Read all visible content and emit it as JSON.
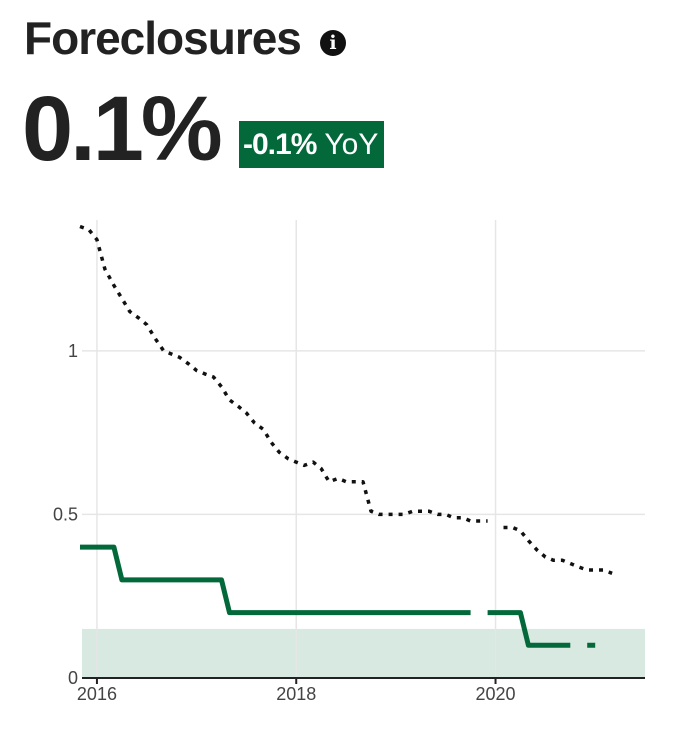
{
  "header": {
    "title": "Foreclosures",
    "info_icon": "info-icon",
    "value": "0.1%",
    "yoy_change": "-0.1%",
    "yoy_label": "YoY",
    "badge_color": "#03693b"
  },
  "chart_data": {
    "type": "line",
    "title": "",
    "xlabel": "",
    "ylabel": "",
    "xlim": [
      2015.85,
      2021.5
    ],
    "ylim": [
      0,
      1.4
    ],
    "x_ticks": [
      {
        "value": 2016,
        "label": "2016"
      },
      {
        "value": 2018,
        "label": "2018"
      },
      {
        "value": 2020,
        "label": "2020"
      }
    ],
    "y_ticks": [
      {
        "value": 0,
        "label": "0"
      },
      {
        "value": 0.5,
        "label": "0.5"
      },
      {
        "value": 1,
        "label": "1"
      }
    ],
    "grid": true,
    "shaded_band": {
      "y0": 0,
      "y1": 0.15,
      "color": "#d7e9e0"
    },
    "series": [
      {
        "style": "dotted",
        "color": "#111111",
        "points": [
          [
            2015.83,
            1.38
          ],
          [
            2015.92,
            1.37
          ],
          [
            2016.0,
            1.34
          ],
          [
            2016.08,
            1.25
          ],
          [
            2016.17,
            1.2
          ],
          [
            2016.25,
            1.16
          ],
          [
            2016.33,
            1.12
          ],
          [
            2016.42,
            1.1
          ],
          [
            2016.5,
            1.08
          ],
          [
            2016.58,
            1.04
          ],
          [
            2016.67,
            1.0
          ],
          [
            2016.75,
            0.99
          ],
          [
            2016.83,
            0.98
          ],
          [
            2016.92,
            0.96
          ],
          [
            2017.0,
            0.94
          ],
          [
            2017.08,
            0.93
          ],
          [
            2017.17,
            0.92
          ],
          [
            2017.25,
            0.89
          ],
          [
            2017.33,
            0.85
          ],
          [
            2017.42,
            0.83
          ],
          [
            2017.5,
            0.81
          ],
          [
            2017.58,
            0.78
          ],
          [
            2017.67,
            0.76
          ],
          [
            2017.75,
            0.72
          ],
          [
            2017.83,
            0.69
          ],
          [
            2017.92,
            0.67
          ],
          [
            2018.0,
            0.66
          ],
          [
            2018.08,
            0.65
          ],
          [
            2018.17,
            0.66
          ],
          [
            2018.25,
            0.64
          ],
          [
            2018.33,
            0.6
          ],
          [
            2018.42,
            0.61
          ],
          [
            2018.5,
            0.6
          ],
          [
            2018.58,
            0.6
          ],
          [
            2018.67,
            0.6
          ],
          [
            2018.75,
            0.51
          ],
          [
            2018.83,
            0.5
          ],
          [
            2018.92,
            0.5
          ],
          [
            2019.0,
            0.5
          ],
          [
            2019.08,
            0.5
          ],
          [
            2019.17,
            0.51
          ],
          [
            2019.25,
            0.51
          ],
          [
            2019.33,
            0.51
          ],
          [
            2019.42,
            0.5
          ],
          [
            2019.5,
            0.5
          ],
          [
            2019.58,
            0.49
          ],
          [
            2019.67,
            0.49
          ],
          [
            2019.75,
            0.48
          ],
          [
            2019.83,
            0.48
          ],
          [
            2019.92,
            0.48
          ],
          [
            2020.0,
            null
          ],
          [
            2020.08,
            0.46
          ],
          [
            2020.17,
            0.46
          ],
          [
            2020.25,
            0.45
          ],
          [
            2020.33,
            0.42
          ],
          [
            2020.42,
            0.39
          ],
          [
            2020.5,
            0.37
          ],
          [
            2020.58,
            0.36
          ],
          [
            2020.67,
            0.36
          ],
          [
            2020.75,
            0.35
          ],
          [
            2020.83,
            0.34
          ],
          [
            2020.92,
            0.33
          ],
          [
            2021.0,
            0.33
          ],
          [
            2021.08,
            0.33
          ],
          [
            2021.17,
            0.32
          ]
        ]
      },
      {
        "style": "solid",
        "color": "#03693b",
        "points": [
          [
            2015.83,
            0.4
          ],
          [
            2016.17,
            0.4
          ],
          [
            2016.25,
            0.3
          ],
          [
            2017.25,
            0.3
          ],
          [
            2017.33,
            0.2
          ],
          [
            2019.75,
            0.2
          ],
          [
            2019.83,
            null
          ],
          [
            2019.92,
            0.2
          ],
          [
            2020.17,
            0.2
          ],
          [
            2020.25,
            0.2
          ],
          [
            2020.33,
            0.1
          ],
          [
            2020.75,
            0.1
          ],
          [
            2020.83,
            null
          ],
          [
            2020.92,
            0.1
          ],
          [
            2021.0,
            0.1
          ]
        ]
      }
    ]
  }
}
